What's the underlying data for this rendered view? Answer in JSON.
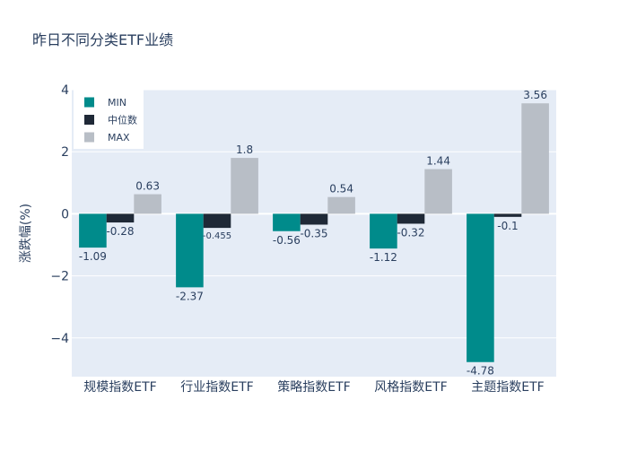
{
  "chart_data": {
    "type": "bar",
    "title": "昨日不同分类ETF业绩",
    "ylabel": "涨跌幅(%)",
    "xlabel": "",
    "categories": [
      "规模指数ETF",
      "行业指数ETF",
      "策略指数ETF",
      "风格指数ETF",
      "主题指数ETF"
    ],
    "series": [
      {
        "name": "MIN",
        "color": "#008b8b",
        "values": [
          -1.09,
          -2.37,
          -0.56,
          -1.12,
          -4.78
        ],
        "labels": [
          "-1.09",
          "-2.37",
          "-0.56",
          "-1.12",
          "-4.78"
        ]
      },
      {
        "name": "中位数",
        "color": "#1f2937",
        "values": [
          -0.28,
          -0.455,
          -0.35,
          -0.32,
          -0.1
        ],
        "labels": [
          "-0.28",
          "-0.455",
          "-0.35",
          "-0.32",
          "-0.1"
        ]
      },
      {
        "name": "MAX",
        "color": "#b8bec6",
        "values": [
          0.63,
          1.8,
          0.54,
          1.44,
          3.56
        ],
        "labels": [
          "0.63",
          "1.8",
          "0.54",
          "1.44",
          "3.56"
        ]
      }
    ],
    "ylim": [
      -5.25,
      4.0
    ],
    "yticks": [
      4,
      2,
      0,
      -2,
      -4
    ],
    "ytick_labels": [
      "4",
      "2",
      "0",
      "−2",
      "−4"
    ],
    "grid": true,
    "legend_position": "top-left",
    "plot_bgcolor": "#e5ecf6"
  }
}
